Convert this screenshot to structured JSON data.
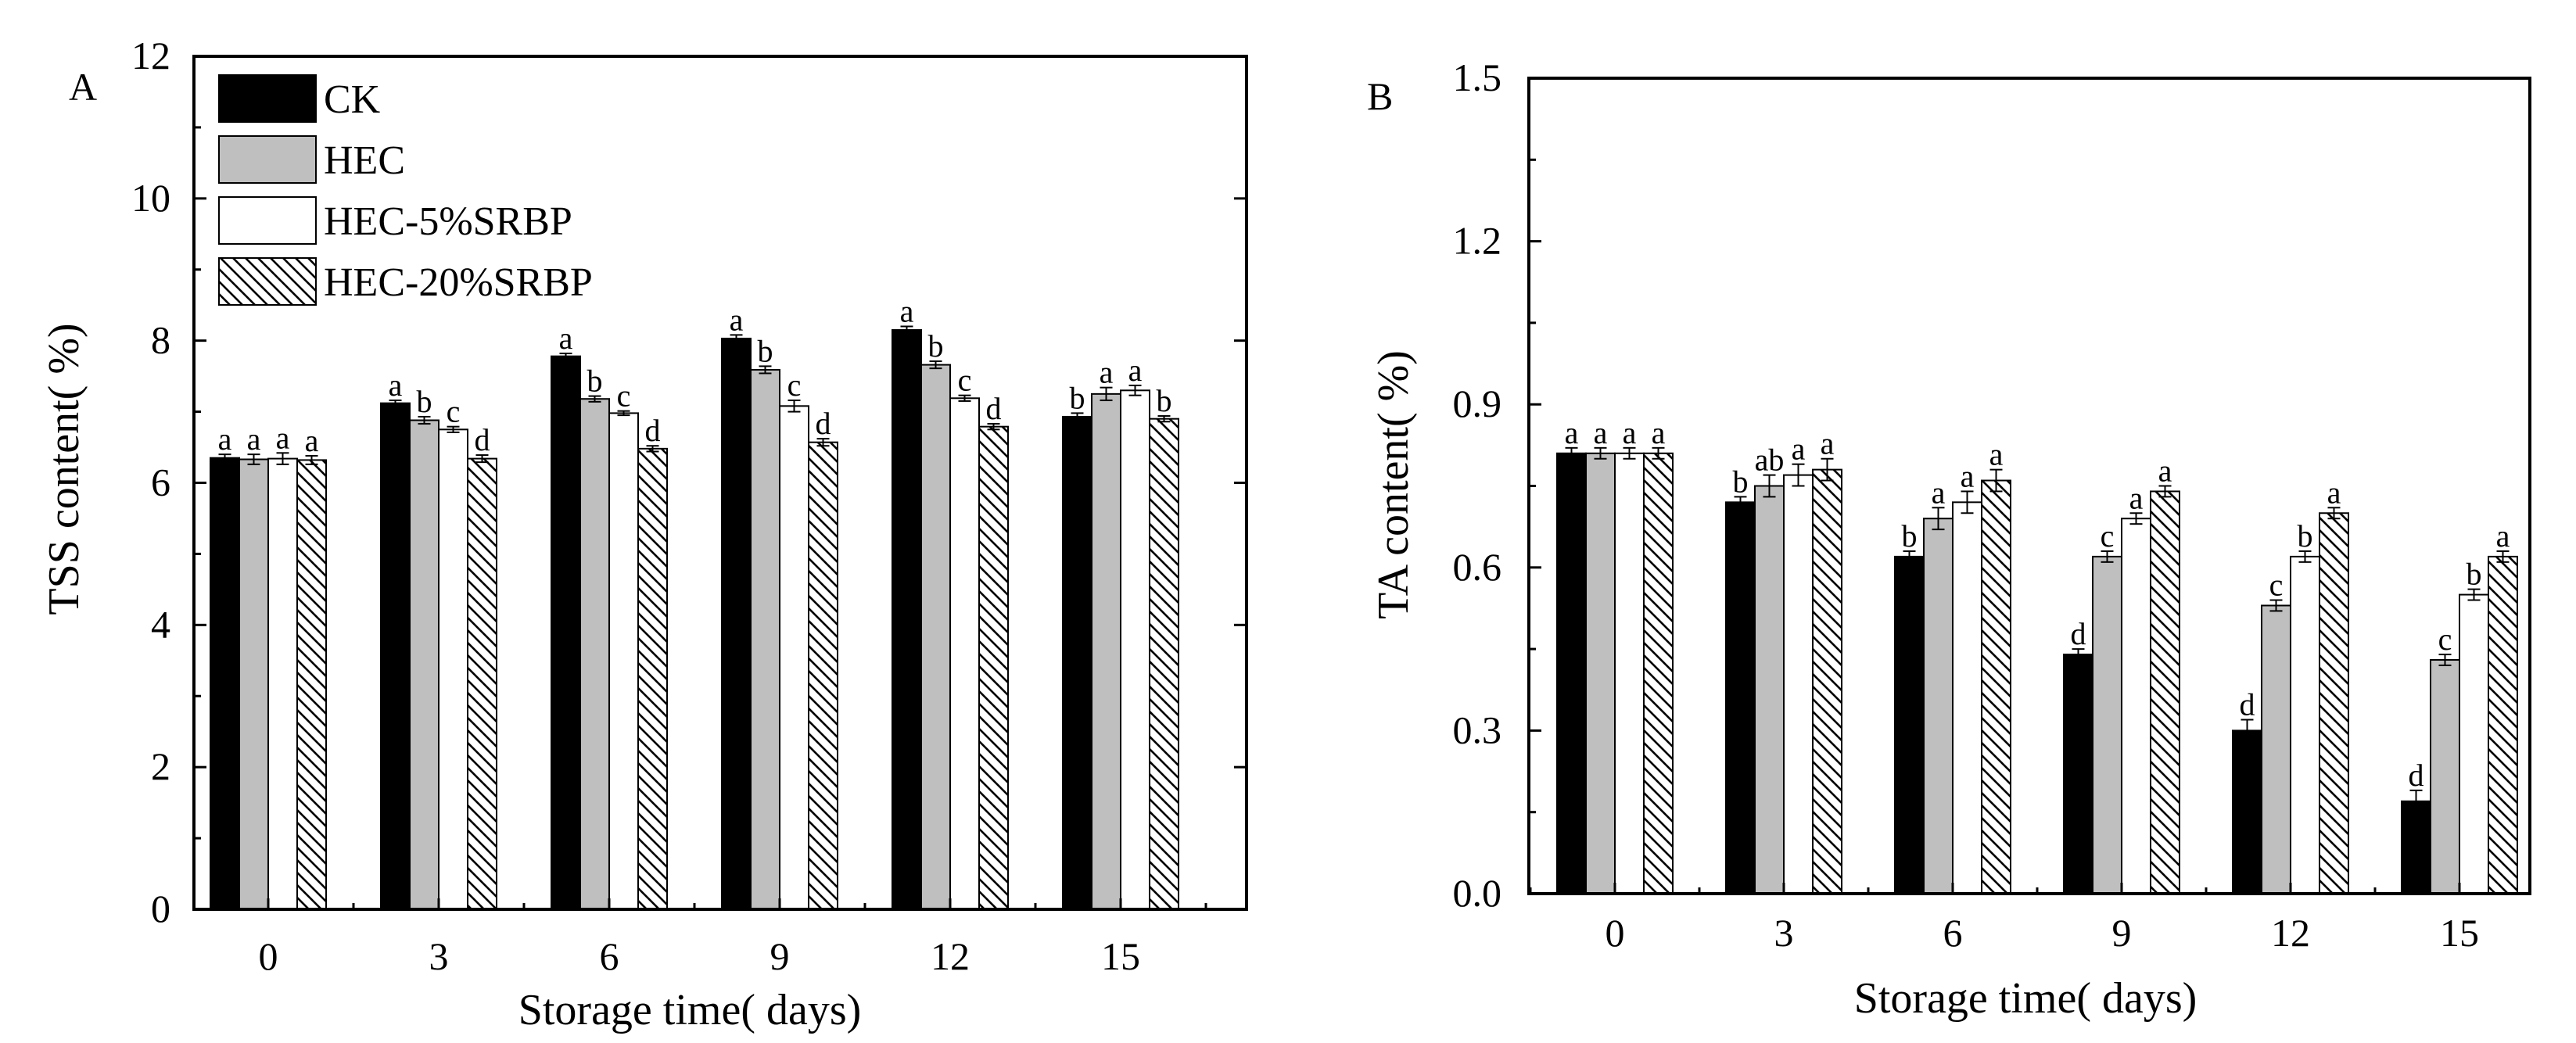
{
  "colors": {
    "CK": "#000000",
    "HEC": "#bfbfbf",
    "HEC-5%SRBP": "#ffffff",
    "HEC-20%SRBP": "hatch",
    "axis": "#000000"
  },
  "chart_data": [
    {
      "panel_label": "A",
      "type": "bar",
      "title": "",
      "xlabel": "Storage time(   days)",
      "ylabel": "TSS content(   %)",
      "categories": [
        "0",
        "3",
        "6",
        "9",
        "12",
        "15"
      ],
      "ylim": [
        0,
        12
      ],
      "yticks": [
        "0",
        "2",
        "4",
        "6",
        "8",
        "10",
        "12"
      ],
      "series": [
        {
          "name": "CK",
          "values": [
            6.35,
            7.12,
            7.78,
            8.03,
            8.15,
            6.93
          ],
          "errors": [
            0.05,
            0.04,
            0.04,
            0.05,
            0.05,
            0.05
          ],
          "letters": [
            "a",
            "a",
            "a",
            "a",
            "a",
            "b"
          ]
        },
        {
          "name": "HEC",
          "values": [
            6.33,
            6.88,
            7.18,
            7.59,
            7.66,
            7.25
          ],
          "errors": [
            0.07,
            0.05,
            0.04,
            0.05,
            0.05,
            0.09
          ],
          "letters": [
            "a",
            "b",
            "b",
            "b",
            "b",
            "a"
          ]
        },
        {
          "name": "HEC-5%SRBP",
          "values": [
            6.34,
            6.75,
            6.98,
            7.08,
            7.19,
            7.3
          ],
          "errors": [
            0.08,
            0.04,
            0.03,
            0.08,
            0.04,
            0.07
          ],
          "letters": [
            "a",
            "c",
            "c",
            "c",
            "c",
            "a"
          ]
        },
        {
          "name": "HEC-20%SRBP",
          "values": [
            6.32,
            6.34,
            6.48,
            6.57,
            6.79,
            6.9
          ],
          "errors": [
            0.06,
            0.05,
            0.04,
            0.05,
            0.04,
            0.04
          ],
          "letters": [
            "a",
            "d",
            "d",
            "d",
            "d",
            "b"
          ]
        }
      ],
      "legend": {
        "placement": "top-left",
        "entries": [
          "CK",
          "HEC",
          "HEC-5%SRBP",
          "HEC-20%SRBP"
        ]
      }
    },
    {
      "panel_label": "B",
      "type": "bar",
      "title": "",
      "xlabel": "Storage time(   days)",
      "ylabel": "TA content(   %)",
      "categories": [
        "0",
        "3",
        "6",
        "9",
        "12",
        "15"
      ],
      "ylim": [
        0,
        1.5
      ],
      "yticks": [
        "0.0",
        "0.3",
        "0.6",
        "0.9",
        "1.2",
        "1.5"
      ],
      "series": [
        {
          "name": "CK",
          "values": [
            0.81,
            0.72,
            0.62,
            0.44,
            0.3,
            0.17
          ],
          "errors": [
            0.01,
            0.01,
            0.01,
            0.01,
            0.02,
            0.02
          ],
          "letters": [
            "a",
            "b",
            "b",
            "d",
            "d",
            "d"
          ]
        },
        {
          "name": "HEC",
          "values": [
            0.81,
            0.75,
            0.69,
            0.62,
            0.53,
            0.43
          ],
          "errors": [
            0.01,
            0.02,
            0.02,
            0.01,
            0.01,
            0.01
          ],
          "letters": [
            "a",
            "ab",
            "a",
            "c",
            "c",
            "c"
          ]
        },
        {
          "name": "HEC-5%SRBP",
          "values": [
            0.81,
            0.77,
            0.72,
            0.69,
            0.62,
            0.55
          ],
          "errors": [
            0.01,
            0.02,
            0.02,
            0.01,
            0.01,
            0.01
          ],
          "letters": [
            "a",
            "a",
            "a",
            "a",
            "b",
            "b"
          ]
        },
        {
          "name": "HEC-20%SRBP",
          "values": [
            0.81,
            0.78,
            0.76,
            0.74,
            0.7,
            0.62
          ],
          "errors": [
            0.01,
            0.02,
            0.02,
            0.01,
            0.01,
            0.01
          ],
          "letters": [
            "a",
            "a",
            "a",
            "a",
            "a",
            "a"
          ]
        }
      ],
      "legend": null
    }
  ]
}
